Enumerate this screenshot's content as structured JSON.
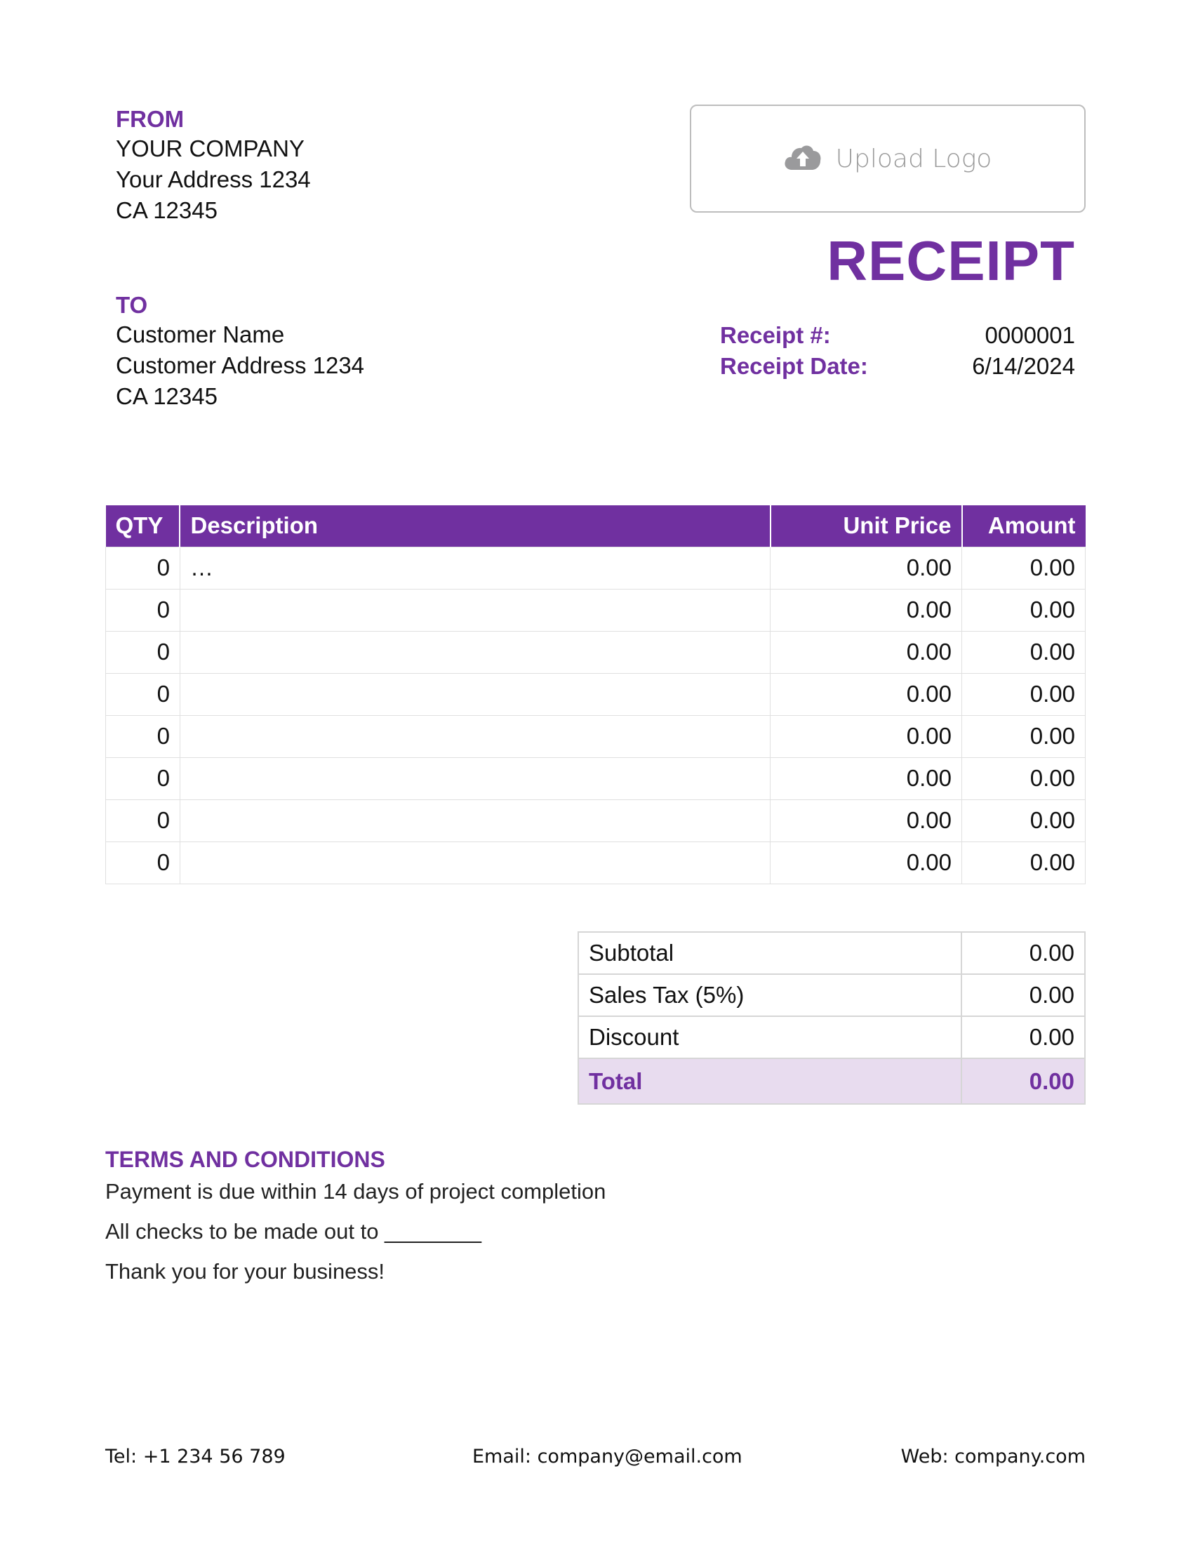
{
  "from": {
    "label": "FROM",
    "lines": [
      "YOUR COMPANY",
      "Your Address 1234",
      "CA 12345"
    ]
  },
  "to": {
    "label": "TO",
    "lines": [
      "Customer Name",
      "Customer Address 1234",
      "CA 12345"
    ]
  },
  "logo": {
    "label": "Upload Logo",
    "icon": "cloud-upload-icon"
  },
  "title": "RECEIPT",
  "meta": {
    "number_label": "Receipt #:",
    "number": "0000001",
    "date_label": "Receipt Date:",
    "date": "6/14/2024"
  },
  "table": {
    "headers": [
      "QTY",
      "Description",
      "Unit Price",
      "Amount"
    ],
    "rows": [
      {
        "qty": "0",
        "description": "…",
        "unit_price": "0.00",
        "amount": "0.00"
      },
      {
        "qty": "0",
        "description": "",
        "unit_price": "0.00",
        "amount": "0.00"
      },
      {
        "qty": "0",
        "description": "",
        "unit_price": "0.00",
        "amount": "0.00"
      },
      {
        "qty": "0",
        "description": "",
        "unit_price": "0.00",
        "amount": "0.00"
      },
      {
        "qty": "0",
        "description": "",
        "unit_price": "0.00",
        "amount": "0.00"
      },
      {
        "qty": "0",
        "description": "",
        "unit_price": "0.00",
        "amount": "0.00"
      },
      {
        "qty": "0",
        "description": "",
        "unit_price": "0.00",
        "amount": "0.00"
      },
      {
        "qty": "0",
        "description": "",
        "unit_price": "0.00",
        "amount": "0.00"
      }
    ]
  },
  "totals": {
    "subtotal_label": "Subtotal",
    "subtotal": "0.00",
    "tax_label": "Sales Tax (5%)",
    "tax": "0.00",
    "discount_label": "Discount",
    "discount": "0.00",
    "total_label": "Total",
    "total": "0.00"
  },
  "terms": {
    "heading": "TERMS AND CONDITIONS",
    "lines": [
      "Payment is due within 14 days of project completion",
      "All checks to be made out to ________",
      "Thank you for your business!"
    ]
  },
  "footer": {
    "tel": "Tel: +1 234 56 789",
    "email": "Email: company@email.com",
    "web": "Web: company.com"
  },
  "colors": {
    "accent": "#7030a0",
    "total_bg": "#e8dcef"
  }
}
